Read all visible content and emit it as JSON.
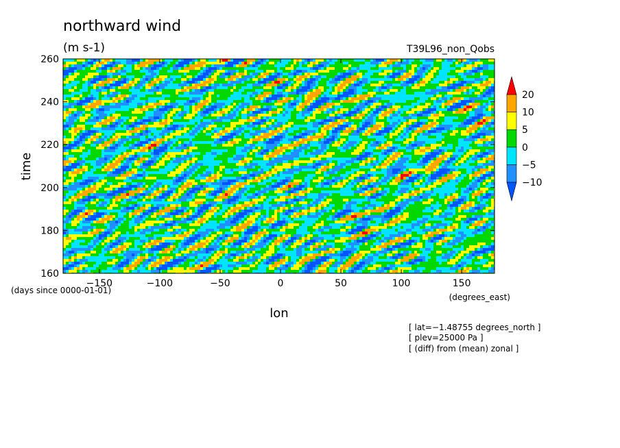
{
  "chart_data": {
    "type": "heatmap",
    "title": "northward wind",
    "units": "(m s-1)",
    "run_label": "T39L96_non_Qobs",
    "xlabel": "lon",
    "ylabel": "time",
    "x_units": "(degrees_east)",
    "y_units": "(days since 0000-01-01)",
    "xlim": [
      -180,
      177.1875
    ],
    "ylim": [
      160,
      260
    ],
    "x_ticks": [
      -150,
      -100,
      -50,
      0,
      50,
      100,
      150
    ],
    "y_ticks": [
      160,
      180,
      200,
      220,
      240,
      260
    ],
    "x_tick_labels": [
      "−150",
      "−100",
      "−50",
      "0",
      "50",
      "100",
      "150"
    ],
    "y_tick_labels": [
      "160",
      "180",
      "200",
      "220",
      "240",
      "260"
    ],
    "colorbar": {
      "levels": [
        -10,
        -5,
        0,
        5,
        10,
        20
      ],
      "level_labels": [
        "−10",
        "−5",
        "0",
        "5",
        "10",
        "20"
      ],
      "colors": [
        "#0055ff",
        "#1e90ff",
        "#00e5ff",
        "#00d800",
        "#ffff00",
        "#ffa500",
        "#ff0000"
      ]
    },
    "annotations": [
      "[ lat=−1.48755 degrees_north ]",
      "[ plev=25000 Pa ]",
      "[ (diff) from (mean) zonal ]"
    ],
    "grid": false
  }
}
